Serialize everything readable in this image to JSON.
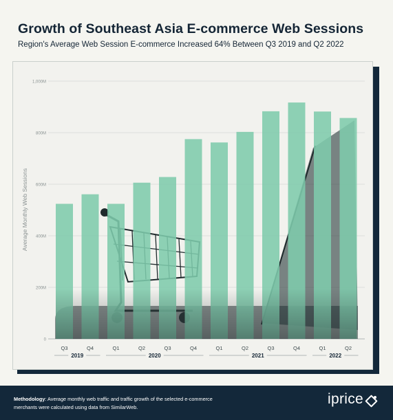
{
  "header": {
    "title": "Growth of Southeast Asia E-commerce Web Sessions",
    "subtitle": "Region's Average Web Session E-commerce Increased 64% Between Q3 2019 and Q2 2022"
  },
  "chart_data": {
    "type": "bar",
    "title": "Growth of Southeast Asia E-commerce Web Sessions",
    "subtitle": "Region's Average Web Session E-commerce Increased 64% Between Q3 2019 and Q2 2022",
    "ylabel": "Average Monthly Web Sessions",
    "xlabel": "",
    "ylim": [
      0,
      1000
    ],
    "yticks": [
      0,
      200,
      400,
      600,
      800,
      1000
    ],
    "ytick_labels": [
      "0",
      "200M",
      "400M",
      "600M",
      "800M",
      "1,000M"
    ],
    "categories": [
      "Q3",
      "Q4",
      "Q1",
      "Q2",
      "Q3",
      "Q4",
      "Q1",
      "Q2",
      "Q3",
      "Q4",
      "Q1",
      "Q2"
    ],
    "year_groups": [
      {
        "label": "2019",
        "start": 0,
        "end": 1
      },
      {
        "label": "2020",
        "start": 2,
        "end": 5
      },
      {
        "label": "2021",
        "start": 6,
        "end": 9
      },
      {
        "label": "2022",
        "start": 10,
        "end": 11
      }
    ],
    "values": [
      524,
      561,
      524,
      606,
      628,
      775,
      762,
      803,
      883,
      917,
      882,
      857
    ],
    "bar_color": "#7ecbac",
    "grid": true,
    "legend": "none"
  },
  "footer": {
    "methodology_label": "Methodology",
    "methodology_text": ": Average monthly web traffic and traffic growth of the selected e-commerce merchants were calculated using data from SimilarWeb.",
    "brand": "iprice"
  },
  "colors": {
    "background": "#f5f5f0",
    "panel": "#f2f2ee",
    "dark": "#13283a",
    "bar": "#7ecbac"
  }
}
